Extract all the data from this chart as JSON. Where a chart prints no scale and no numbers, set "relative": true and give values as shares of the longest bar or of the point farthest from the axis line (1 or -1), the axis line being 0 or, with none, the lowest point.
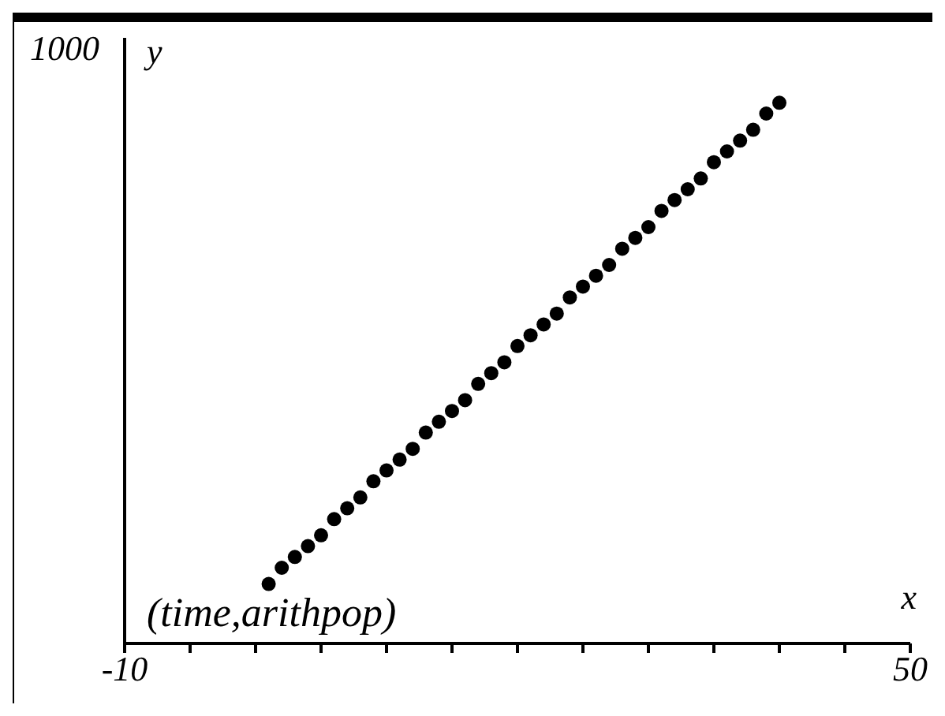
{
  "chart_data": {
    "type": "scatter",
    "xlabel": "x",
    "ylabel": "y",
    "relative": true,
    "annotations": [
      "1000",
      "(time,arithpop)"
    ],
    "x": [
      1,
      2,
      3,
      4,
      5,
      6,
      7,
      8,
      9,
      10,
      11,
      12,
      13,
      14,
      15,
      16,
      17,
      18,
      19,
      20,
      21,
      22,
      23,
      24,
      25,
      26,
      27,
      28,
      29,
      30,
      31,
      32,
      33,
      34,
      35,
      36,
      37,
      38,
      39,
      40
    ],
    "series": [
      {
        "color": "#000000",
        "values": [
          0.11,
          0.14,
          0.16,
          0.18,
          0.2,
          0.23,
          0.25,
          0.27,
          0.3,
          0.32,
          0.34,
          0.36,
          0.39,
          0.41,
          0.43,
          0.45,
          0.48,
          0.5,
          0.52,
          0.55,
          0.57,
          0.59,
          0.61,
          0.64,
          0.66,
          0.68,
          0.7,
          0.73,
          0.75,
          0.77,
          0.8,
          0.82,
          0.84,
          0.86,
          0.89,
          0.91,
          0.93,
          0.95,
          0.98,
          1
        ]
      }
    ],
    "xlim": [
      -10,
      50
    ],
    "xticks": [
      {
        "value": -10,
        "label": "-10"
      },
      {
        "value": -5,
        "label": null
      },
      {
        "value": 0,
        "label": null
      },
      {
        "value": 5,
        "label": null
      },
      {
        "value": 10,
        "label": null
      },
      {
        "value": 15,
        "label": null
      },
      {
        "value": 20,
        "label": null
      },
      {
        "value": 25,
        "label": null
      },
      {
        "value": 30,
        "label": null
      },
      {
        "value": 35,
        "label": null
      },
      {
        "value": 40,
        "label": null
      },
      {
        "value": 45,
        "label": null
      },
      {
        "value": 50,
        "label": "50"
      }
    ],
    "grid": false,
    "legend": false,
    "marker": "circle"
  }
}
